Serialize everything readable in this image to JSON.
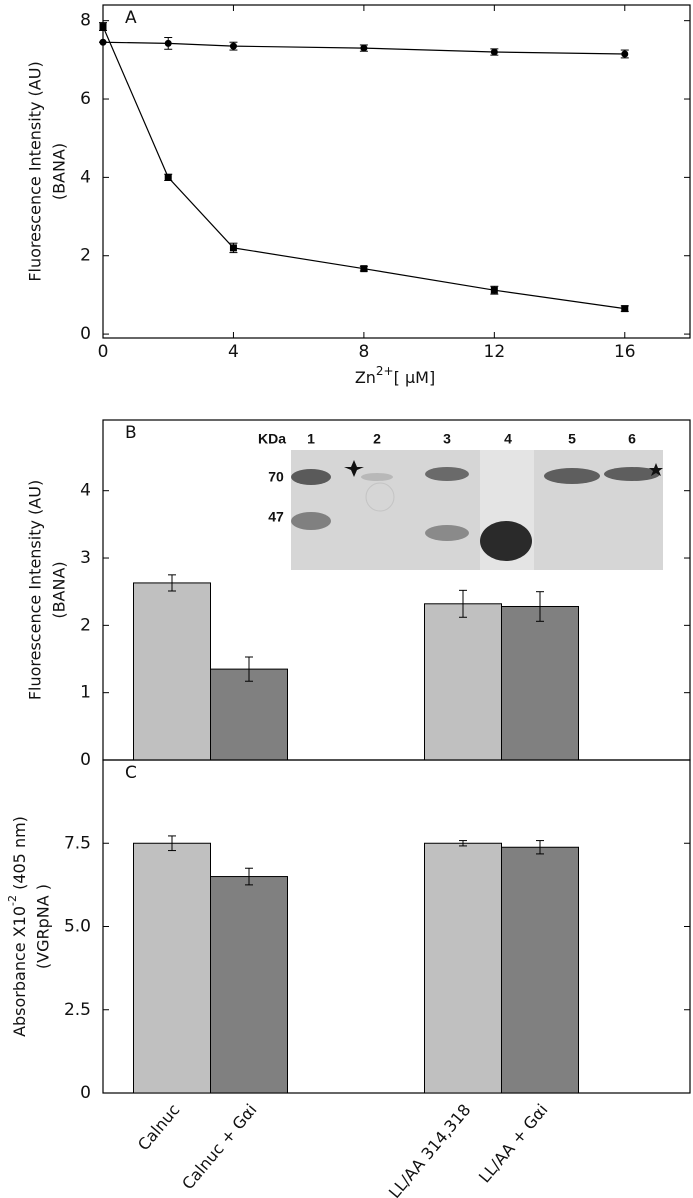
{
  "chart_data": [
    {
      "type": "line",
      "annotation": "A",
      "y_label": [
        "Fluorescence Intensity (AU)",
        "(BANA)"
      ],
      "x_label": {
        "base": "Zn",
        "sup": "2+",
        "unit": "[ μM]"
      },
      "x": [
        0,
        2,
        4,
        8,
        12,
        16
      ],
      "xlim": [
        0,
        18
      ],
      "xticks": [
        0,
        4,
        8,
        12,
        16
      ],
      "ylim": [
        -0.1,
        8.4
      ],
      "yticks": [
        0,
        2,
        4,
        6,
        8
      ],
      "series": [
        {
          "color": "#000000",
          "marker": "circle",
          "values": [
            7.45,
            7.42,
            7.35,
            7.3,
            7.2,
            7.15
          ],
          "errors": [
            0,
            0.15,
            0.1,
            0.08,
            0.08,
            0.1
          ]
        },
        {
          "color": "#000000",
          "marker": "square",
          "values": [
            7.85,
            4.0,
            2.2,
            1.67,
            1.12,
            0.65
          ],
          "errors": [
            0.1,
            0.08,
            0.12,
            0.06,
            0.1,
            0.07
          ]
        }
      ]
    },
    {
      "type": "bar",
      "annotation": "B",
      "y_label": [
        "Fluorescence Intensity (AU)",
        "(BANA)"
      ],
      "categories": [
        null,
        null,
        null,
        null
      ],
      "values": [
        2.63,
        1.35,
        2.32,
        2.28
      ],
      "errors": [
        0.12,
        0.18,
        0.2,
        0.22
      ],
      "colors": [
        "#c0c0c0",
        "#808080",
        "#c0c0c0",
        "#808080"
      ],
      "ylim": [
        0,
        5.05
      ],
      "yticks": [
        0,
        1,
        2,
        3,
        4
      ],
      "inset": {
        "header": "KDa",
        "lanes": [
          "1",
          "2",
          "3",
          "4",
          "5",
          "6"
        ],
        "markers": [
          "70",
          "47"
        ]
      }
    },
    {
      "type": "bar",
      "annotation": "C",
      "y_label": {
        "base": "Absorbance X10",
        "sup": "-2",
        "unit": " (405 nm)",
        "line2": "(VGRpNA )"
      },
      "categories": [
        "Calnuc",
        "Calnuc + Gαi",
        "LL/AA 314,318",
        "LL/AA + Gαi"
      ],
      "values": [
        7.5,
        6.5,
        7.5,
        7.38
      ],
      "errors": [
        0.22,
        0.25,
        0.08,
        0.2
      ],
      "colors": [
        "#c0c0c0",
        "#808080",
        "#c0c0c0",
        "#808080"
      ],
      "ylim": [
        0,
        10
      ],
      "yticks": [
        0,
        2.5,
        {
          "value": 5,
          "label": "5.0"
        },
        7.5
      ]
    }
  ]
}
